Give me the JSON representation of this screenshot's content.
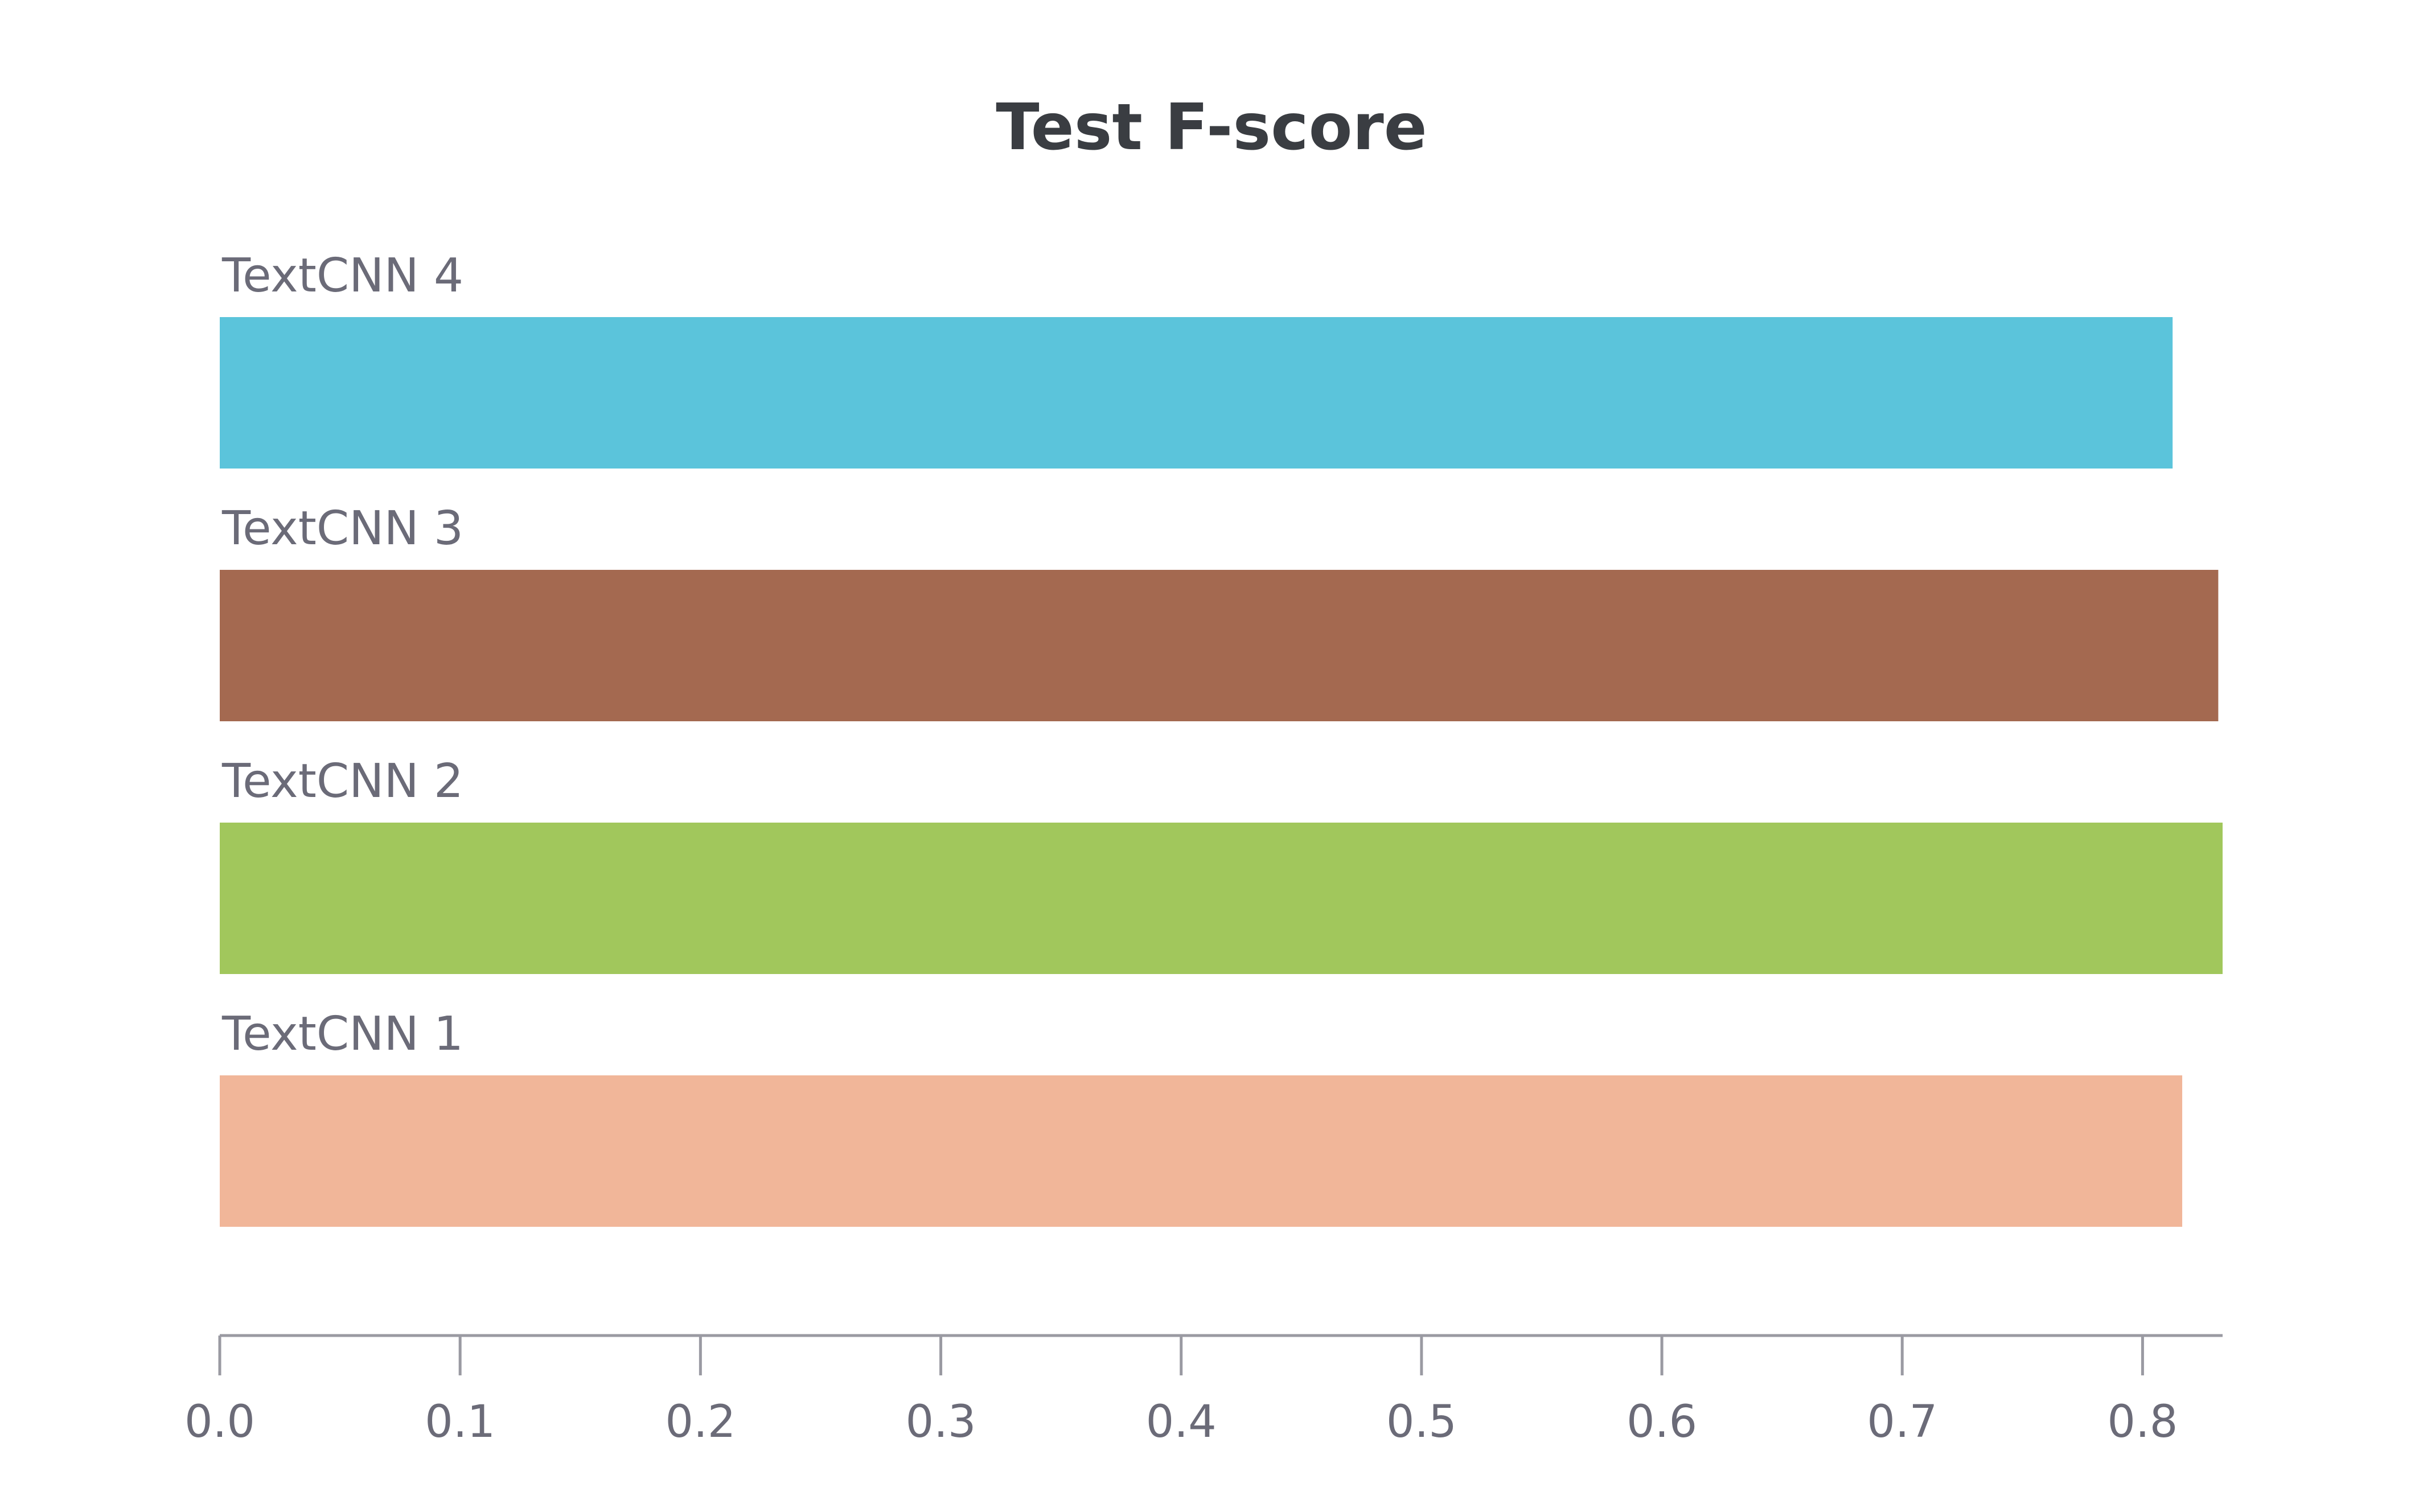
{
  "chart_data": {
    "type": "bar",
    "orientation": "horizontal",
    "title": "Test F-score",
    "xlabel": "",
    "ylabel": "",
    "xlim": [
      0,
      0.8333
    ],
    "grid": false,
    "legend": "none",
    "ticks": [
      "0.0",
      "0.1",
      "0.2",
      "0.3",
      "0.4",
      "0.5",
      "0.6",
      "0.7",
      "0.8"
    ],
    "tick_values": [
      0,
      0.1,
      0.2,
      0.3,
      0.4,
      0.5,
      0.6,
      0.7,
      0.8
    ],
    "bars": [
      {
        "label": "TextCNN 4",
        "value": 0.8125,
        "color": "#5bc4db"
      },
      {
        "label": "TextCNN 3",
        "value": 0.8315,
        "color": "#a46950"
      },
      {
        "label": "TextCNN 2",
        "value": 0.8333,
        "color": "#a1c75c"
      },
      {
        "label": "TextCNN 1",
        "value": 0.8165,
        "color": "#f1b699"
      }
    ]
  }
}
